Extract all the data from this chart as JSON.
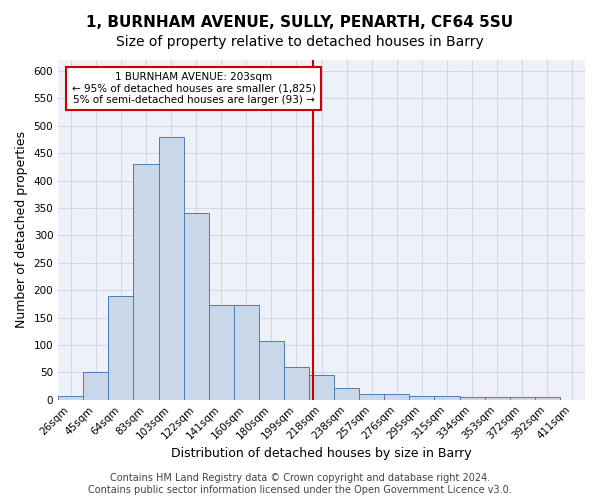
{
  "title1": "1, BURNHAM AVENUE, SULLY, PENARTH, CF64 5SU",
  "title2": "Size of property relative to detached houses in Barry",
  "xlabel": "Distribution of detached houses by size in Barry",
  "ylabel": "Number of detached properties",
  "bar_labels": [
    "26sqm",
    "45sqm",
    "64sqm",
    "83sqm",
    "103sqm",
    "122sqm",
    "141sqm",
    "160sqm",
    "180sqm",
    "199sqm",
    "218sqm",
    "238sqm",
    "257sqm",
    "276sqm",
    "295sqm",
    "315sqm",
    "334sqm",
    "353sqm",
    "372sqm",
    "392sqm",
    "411sqm"
  ],
  "bar_heights": [
    7,
    51,
    190,
    430,
    480,
    340,
    172,
    172,
    107,
    60,
    46,
    22,
    11,
    11,
    7,
    7,
    5,
    5,
    5,
    5,
    0
  ],
  "bar_color": "#c8d8e8",
  "bar_edgecolor": "#4a7db5",
  "grid_color": "#d0d8e8",
  "bg_color": "#eef2f8",
  "vline_x": 9.65,
  "vline_color": "#cc0000",
  "annotation_text": "1 BURNHAM AVENUE: 203sqm\n← 95% of detached houses are smaller (1,825)\n5% of semi-detached houses are larger (93) →",
  "annotation_box_color": "#cc0000",
  "ylim": [
    0,
    620
  ],
  "yticks": [
    0,
    50,
    100,
    150,
    200,
    250,
    300,
    350,
    400,
    450,
    500,
    550,
    600
  ],
  "footer_text": "Contains HM Land Registry data © Crown copyright and database right 2024.\nContains public sector information licensed under the Open Government Licence v3.0.",
  "title1_fontsize": 11,
  "title2_fontsize": 10,
  "xlabel_fontsize": 9,
  "ylabel_fontsize": 9,
  "tick_fontsize": 7.5,
  "footer_fontsize": 7
}
